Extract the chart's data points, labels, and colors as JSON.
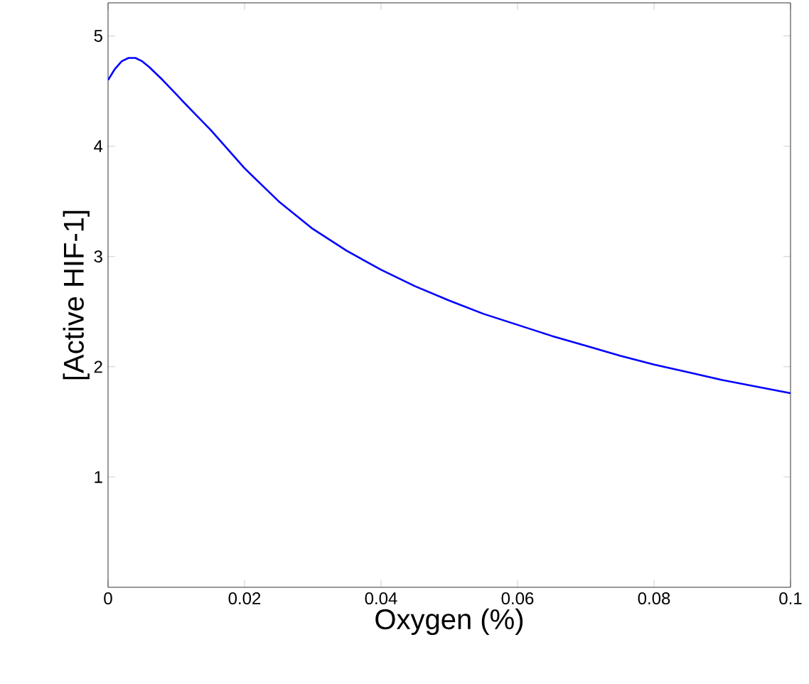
{
  "chart_data": {
    "type": "line",
    "xlabel": "Oxygen (%)",
    "ylabel": "[Active HIF-1]",
    "xlim": [
      0,
      0.1
    ],
    "ylim": [
      0,
      5.3
    ],
    "xticks": [
      0,
      0.02,
      0.04,
      0.06,
      0.08,
      0.1
    ],
    "yticks": [
      1,
      2,
      3,
      4,
      5
    ],
    "series": [
      {
        "color": "#0000ff",
        "x": [
          0,
          0.001,
          0.002,
          0.003,
          0.004,
          0.005,
          0.006,
          0.008,
          0.01,
          0.012,
          0.015,
          0.02,
          0.025,
          0.03,
          0.035,
          0.04,
          0.045,
          0.05,
          0.055,
          0.06,
          0.065,
          0.07,
          0.075,
          0.08,
          0.085,
          0.09,
          0.095,
          0.1
        ],
        "values": [
          4.6,
          4.7,
          4.77,
          4.8,
          4.8,
          4.77,
          4.72,
          4.6,
          4.47,
          4.34,
          4.15,
          3.8,
          3.5,
          3.25,
          3.05,
          2.88,
          2.73,
          2.6,
          2.48,
          2.38,
          2.28,
          2.19,
          2.1,
          2.02,
          1.95,
          1.88,
          1.82,
          1.76
        ]
      }
    ],
    "grid": false
  }
}
